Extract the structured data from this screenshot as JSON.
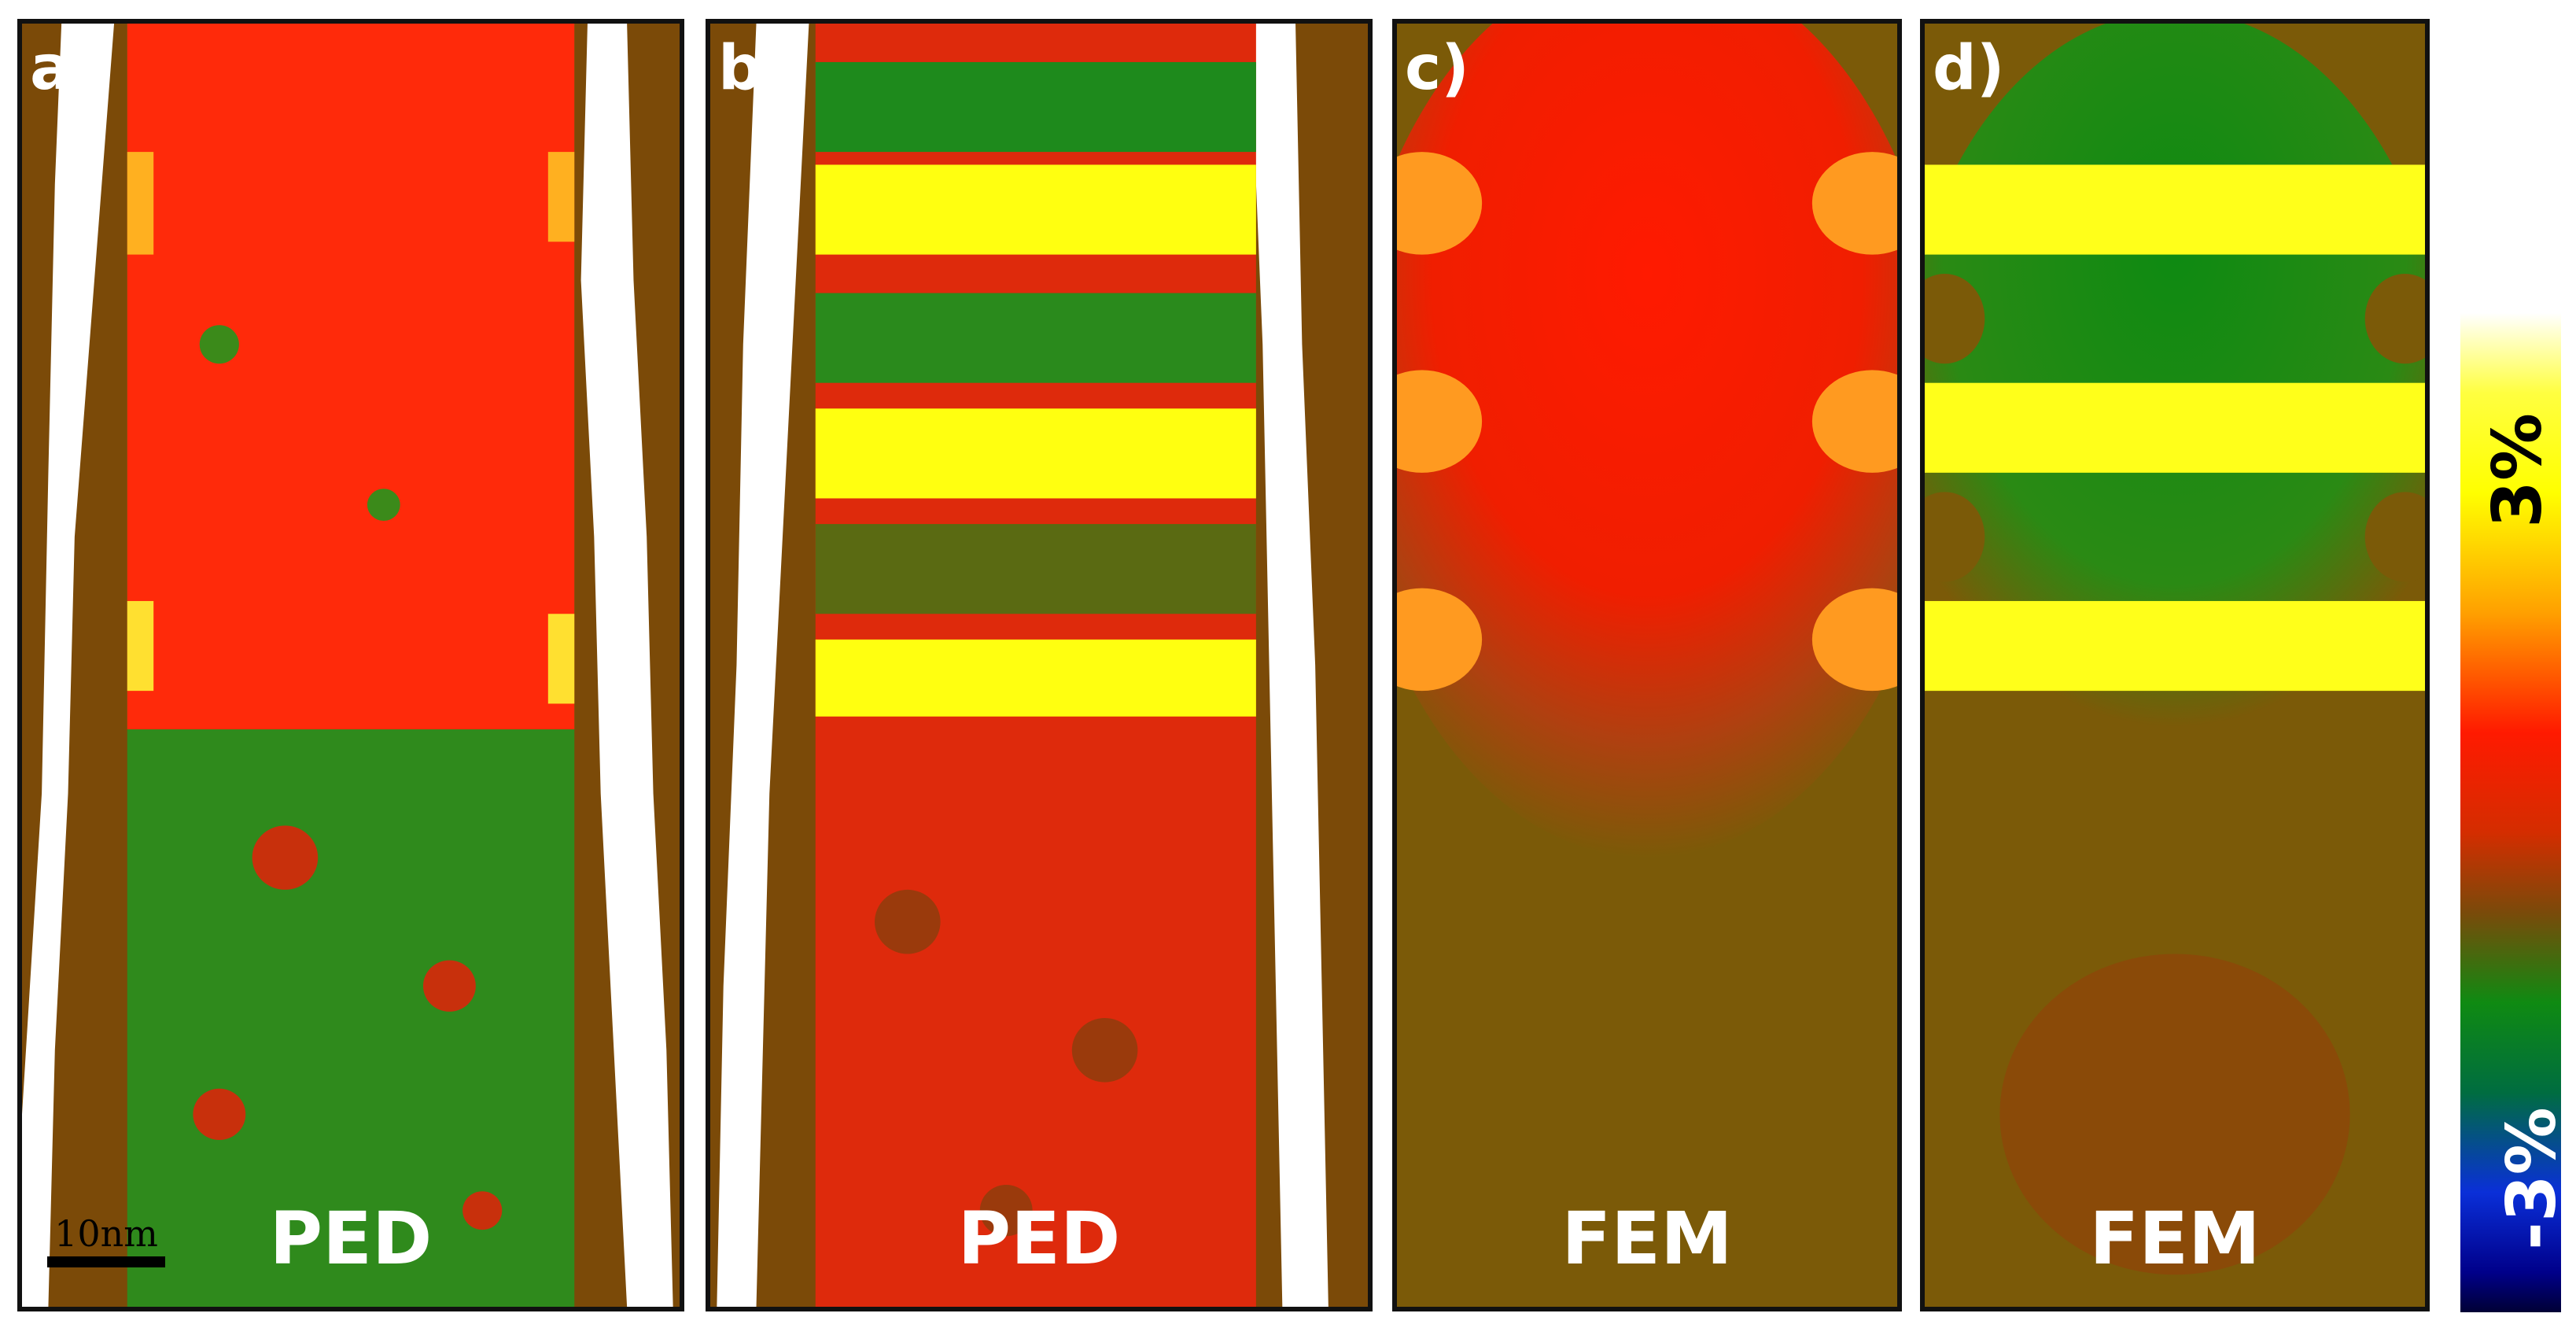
{
  "panels": [
    {
      "label": "a)",
      "title": "PED"
    },
    {
      "label": "b)",
      "title": "PED"
    },
    {
      "label": "c)",
      "title": "FEM"
    },
    {
      "label": "d)",
      "title": "FEM"
    }
  ],
  "scale_bar": {
    "label": "10nm"
  },
  "colorbar": {
    "max_label": "3%",
    "min_label": "-3%",
    "colors": [
      "#ffffff",
      "#ffff00",
      "#ff1a00",
      "#7a4a0a",
      "#0f8a12",
      "#0a2fd8",
      "#000035"
    ]
  }
}
